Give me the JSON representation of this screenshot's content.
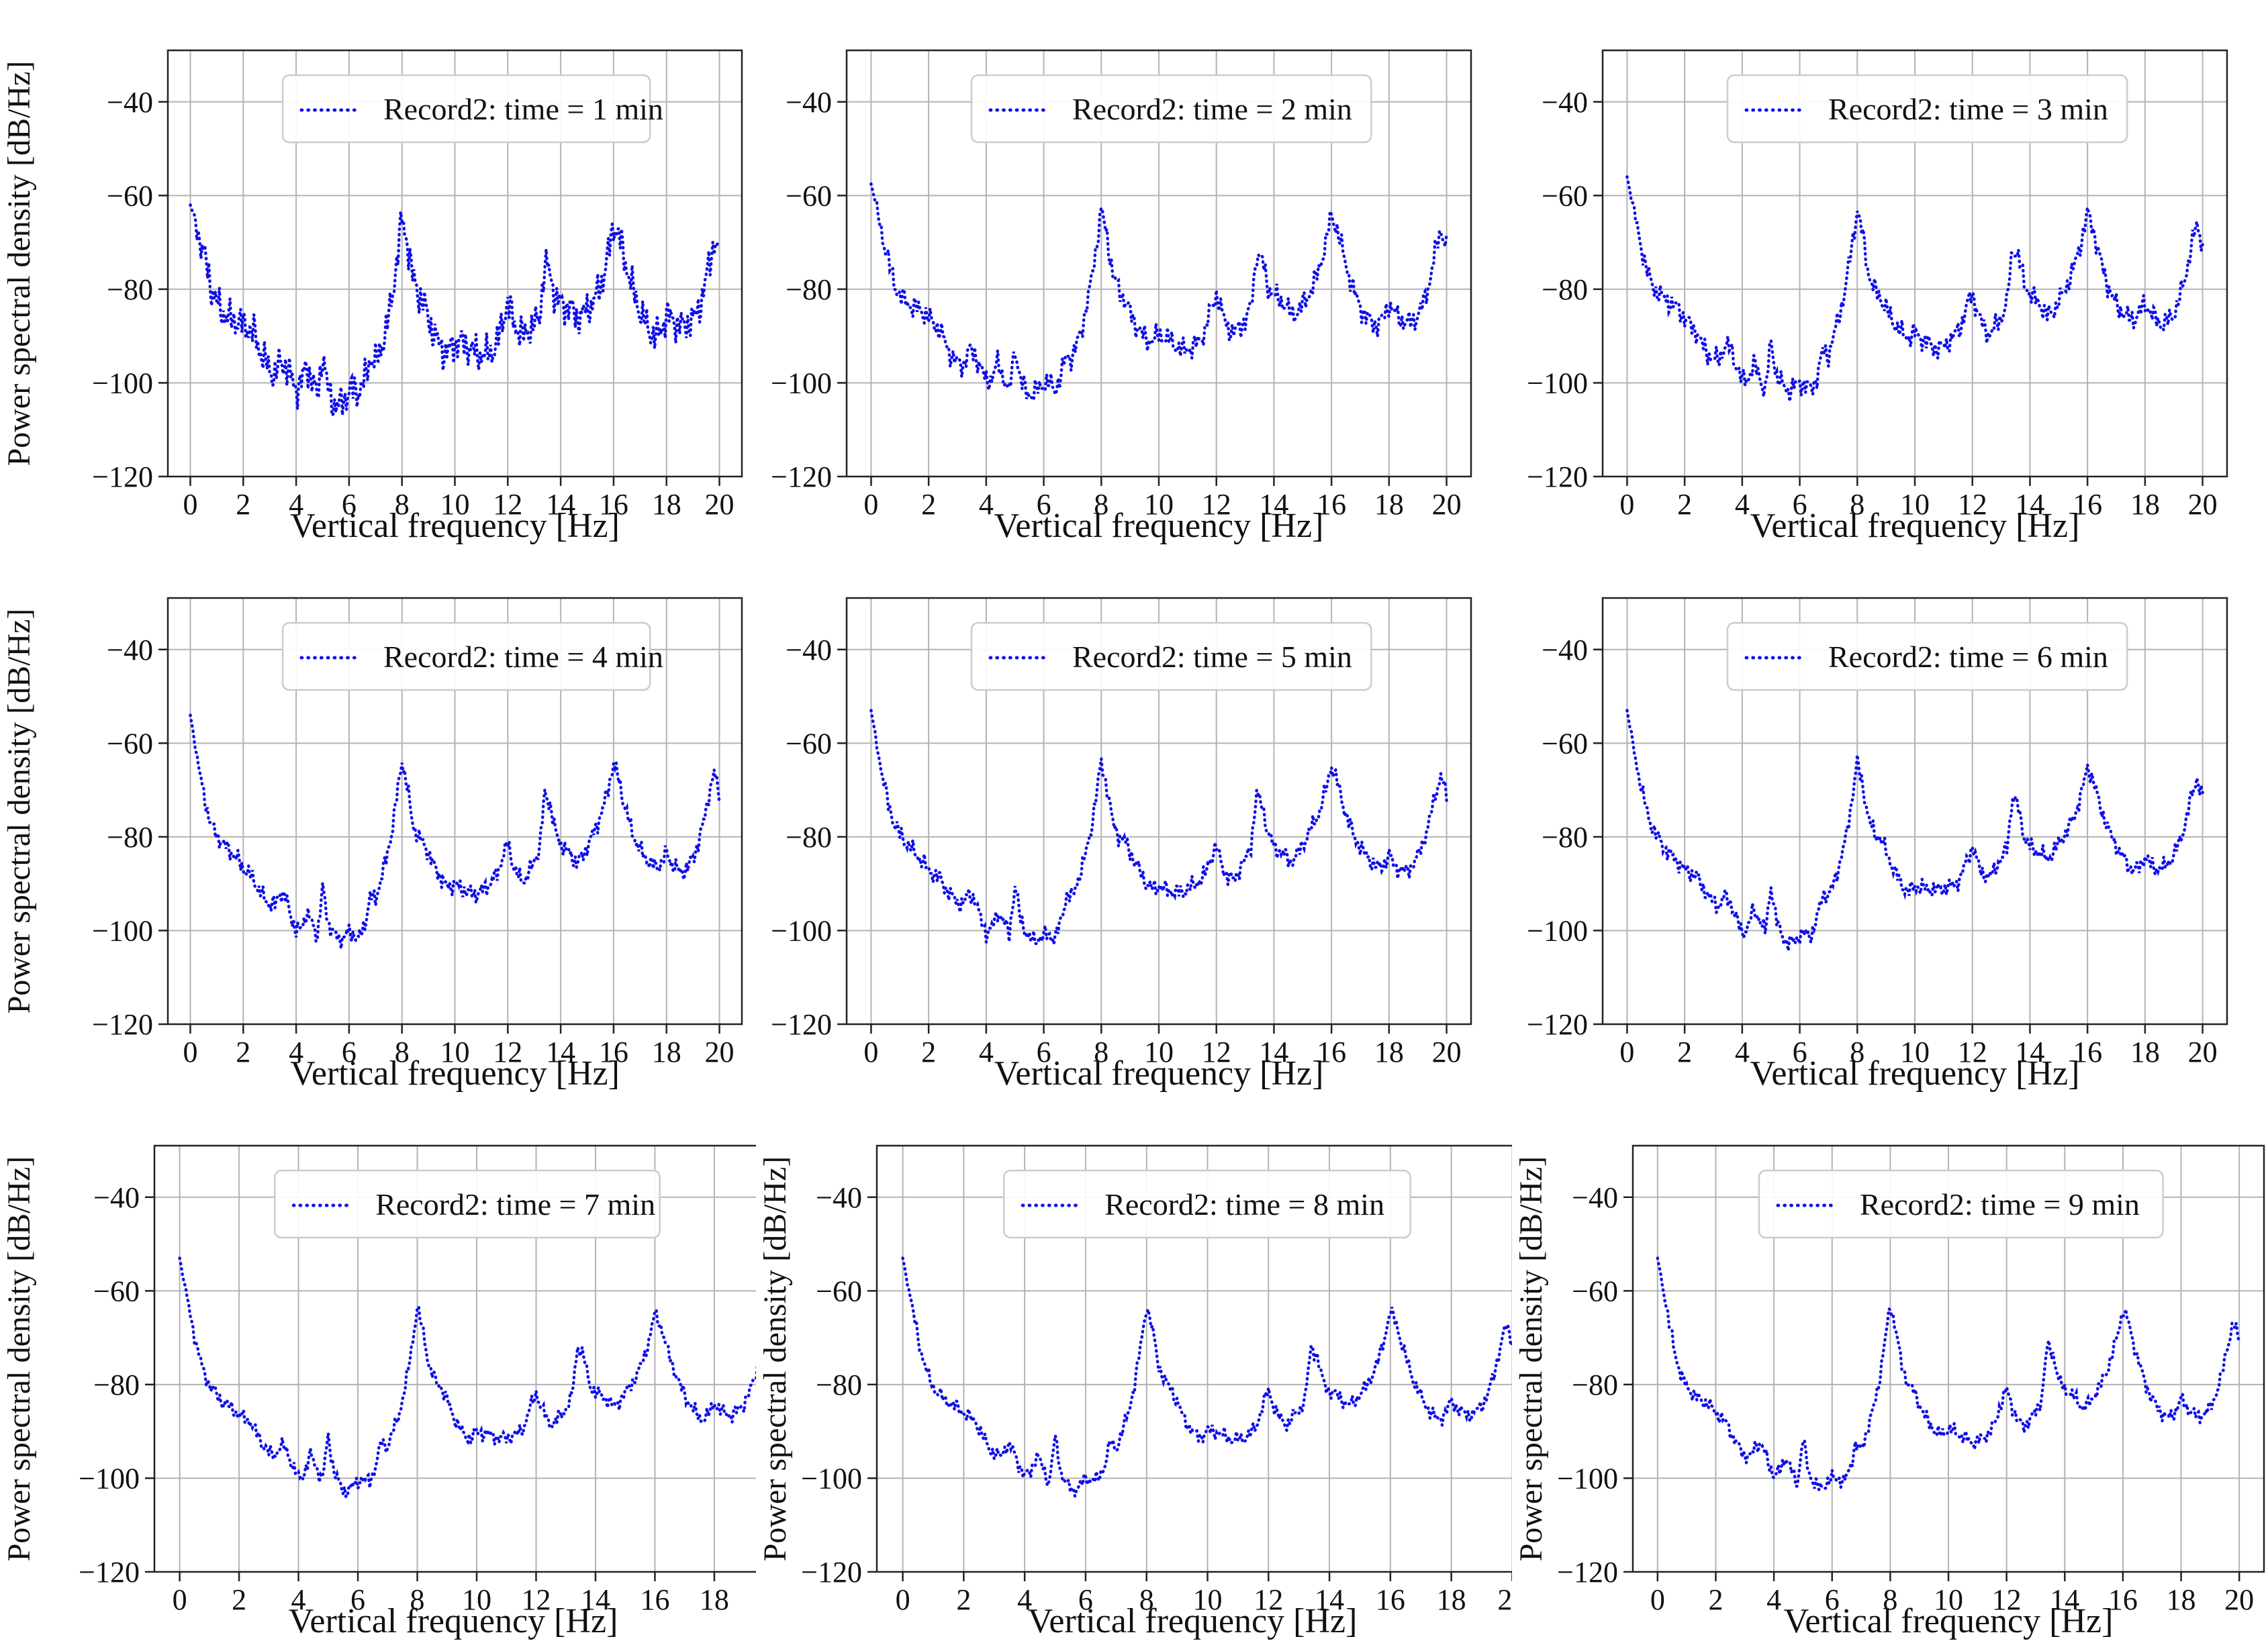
{
  "figure": {
    "background": "#ffffff",
    "curve_color": "#0f0fe8",
    "grid_color": "#b3b3b3",
    "spine_color": "#222222",
    "legend_border_color": "#cccccc",
    "xlabel": "Vertical frequency [Hz]",
    "ylabel": "Power spectral density [dB/Hz]",
    "xticks": [
      0,
      2,
      4,
      6,
      8,
      10,
      12,
      14,
      16,
      18,
      20
    ],
    "yticks": [
      -40,
      -60,
      -80,
      -100,
      -120
    ],
    "xlim": [
      -0.85,
      20.85
    ],
    "ylim": [
      -120,
      -29
    ]
  },
  "chart_data": {
    "type": "line",
    "style": "dotted",
    "grid": "on",
    "legend_position": "upper center",
    "x_start": 0,
    "x_step": 0.2,
    "base_curve_db": [
      -53,
      -60,
      -67,
      -73,
      -77.5,
      -80,
      -81.5,
      -83,
      -84,
      -85,
      -86.5,
      -87.5,
      -88.5,
      -91,
      -93,
      -94.5,
      -95,
      -92.5,
      -93.5,
      -97,
      -100,
      -99,
      -95.5,
      -98,
      -101,
      -91,
      -98.5,
      -101,
      -102.5,
      -101.5,
      -100.5,
      -100.5,
      -101,
      -98,
      -92.5,
      -93.5,
      -89.5,
      -85.5,
      -80,
      -72,
      -63.5,
      -69,
      -76.5,
      -79.5,
      -81,
      -83.5,
      -86.5,
      -88.5,
      -90.5,
      -91,
      -90,
      -90.5,
      -91,
      -91.5,
      -92,
      -91.5,
      -91,
      -90,
      -88.5,
      -84.5,
      -81.5,
      -85.5,
      -88,
      -89,
      -87,
      -85.5,
      -82.5,
      -71.5,
      -73.5,
      -79.5,
      -81.5,
      -82.5,
      -83.5,
      -85,
      -84,
      -82,
      -80,
      -77.5,
      -74.5,
      -70,
      -64.5,
      -67.5,
      -72.5,
      -76.5,
      -80,
      -82.5,
      -84.5,
      -86,
      -87,
      -86,
      -83.5,
      -85.5,
      -86.5,
      -87,
      -86,
      -84.5,
      -81.5,
      -77.5,
      -71.5,
      -67,
      -71
    ],
    "subplots": [
      {
        "legend": "Record2: time = 1 min",
        "start_db": -60,
        "noise_db": 5.0,
        "offset_db": -2.0,
        "seed": 1
      },
      {
        "legend": "Record2: time = 2 min",
        "start_db": -57,
        "noise_db": 3.2,
        "offset_db": -0.5,
        "seed": 2
      },
      {
        "legend": "Record2: time = 3 min",
        "start_db": -56,
        "noise_db": 3.0,
        "offset_db": 0,
        "seed": 3
      },
      {
        "legend": "Record2: time = 4 min",
        "start_db": -54,
        "noise_db": 2.4,
        "offset_db": 0,
        "seed": 4
      },
      {
        "legend": "Record2: time = 5 min",
        "start_db": -53,
        "noise_db": 2.4,
        "offset_db": 0,
        "seed": 5
      },
      {
        "legend": "Record2: time = 6 min",
        "start_db": -53,
        "noise_db": 2.3,
        "offset_db": 0,
        "seed": 6
      },
      {
        "legend": "Record2: time = 7 min",
        "start_db": -53,
        "noise_db": 2.0,
        "offset_db": 0,
        "seed": 7
      },
      {
        "legend": "Record2: time = 8 min",
        "start_db": -53,
        "noise_db": 2.0,
        "offset_db": 0,
        "seed": 8
      },
      {
        "legend": "Record2: time = 9 min",
        "start_db": -53,
        "noise_db": 2.0,
        "offset_db": 0,
        "seed": 9
      }
    ]
  }
}
